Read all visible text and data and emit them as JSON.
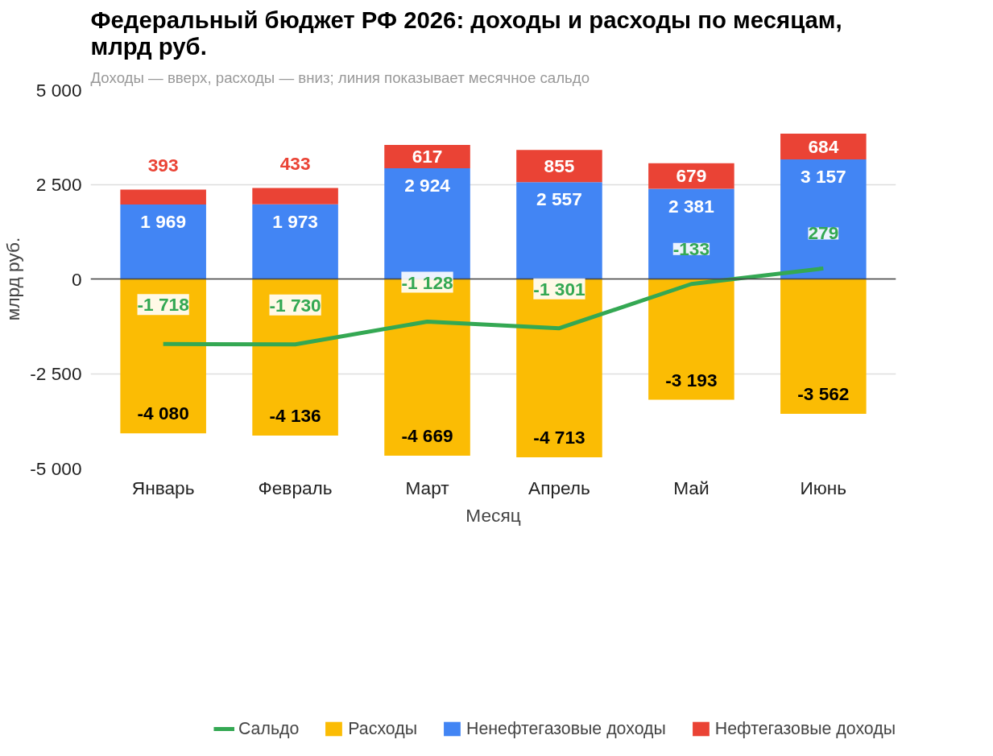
{
  "chart_data": {
    "type": "bar",
    "stacked": true,
    "title": "Федеральный бюджет РФ 2026: доходы и расходы по месяцам, млрд руб.",
    "subtitle": "Доходы — вверх, расходы — вниз; линия показывает месячное сальдо",
    "xlabel": "Месяц",
    "ylabel": "млрд руб.",
    "categories": [
      "Январь",
      "Февраль",
      "Март",
      "Апрель",
      "Май",
      "Июнь"
    ],
    "series": [
      {
        "name": "Сальдо",
        "type": "line",
        "color": "#34a853",
        "values": [
          -1718,
          -1730,
          -1128,
          -1301,
          -133,
          279
        ],
        "value_labels": [
          "-1 718",
          "-1 730",
          "-1 128",
          "-1 301",
          "-133",
          "279"
        ]
      },
      {
        "name": "Расходы",
        "color": "#fbbc04",
        "values": [
          -4080,
          -4136,
          -4669,
          -4713,
          -3193,
          -3562
        ],
        "value_labels": [
          "-4 080",
          "-4 136",
          "-4 669",
          "-4 713",
          "-3 193",
          "-3 562"
        ]
      },
      {
        "name": "Ненефтегазовые доходы",
        "color": "#4285f4",
        "values": [
          1969,
          1973,
          2924,
          2557,
          2381,
          3157
        ],
        "value_labels": [
          "1 969",
          "1 973",
          "2 924",
          "2 557",
          "2 381",
          "3 157"
        ]
      },
      {
        "name": "Нефтегазовые доходы",
        "color": "#ea4335",
        "values": [
          393,
          433,
          617,
          855,
          679,
          684
        ],
        "value_labels": [
          "393",
          "433",
          "617",
          "855",
          "679",
          "684"
        ]
      }
    ],
    "ylim": [
      -5000,
      5000
    ],
    "yticks": [
      {
        "value": -5000,
        "label": "-5 000"
      },
      {
        "value": -2500,
        "label": "-2 500"
      },
      0,
      {
        "value": 2500,
        "label": "2 500"
      },
      {
        "value": 5000,
        "label": "5 000"
      }
    ],
    "grid": "y",
    "legend": "bottom",
    "marker": "none",
    "line_style": "solid"
  }
}
